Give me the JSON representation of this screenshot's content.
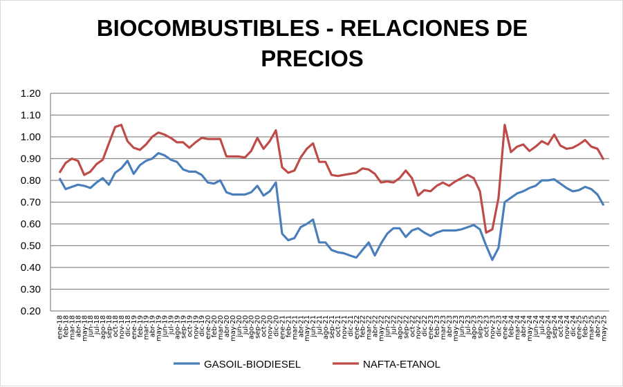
{
  "chart_data": {
    "type": "line",
    "title": "BIOCOMBUSTIBLES - RELACIONES DE PRECIOS",
    "title_lines": [
      "BIOCOMBUSTIBLES - RELACIONES DE",
      "PRECIOS"
    ],
    "xlabel": "",
    "ylabel": "",
    "ylim": [
      0.2,
      1.2
    ],
    "yticks": [
      "0.20",
      "0.30",
      "0.40",
      "0.50",
      "0.60",
      "0.70",
      "0.80",
      "0.90",
      "1.00",
      "1.10",
      "1.20"
    ],
    "grid": true,
    "legend_position": "bottom",
    "x": [
      "ene-18",
      "feb-18",
      "mar-18",
      "abr-18",
      "may-18",
      "jun-18",
      "jul-18",
      "ago-18",
      "sep-18",
      "oct-18",
      "nov-18",
      "dic-18",
      "ene-19",
      "feb-19",
      "mar-19",
      "abr-19",
      "may-19",
      "jun-19",
      "jul-19",
      "ago-19",
      "sep-19",
      "oct-19",
      "nov-19",
      "dic-19",
      "ene-20",
      "feb-20",
      "mar-20",
      "abr-20",
      "may-20",
      "jun-20",
      "jul-20",
      "ago-20",
      "sep-20",
      "oct-20",
      "nov-20",
      "dic-20",
      "ene-21",
      "feb-21",
      "mar-21",
      "abr-21",
      "may-21",
      "jun-21",
      "jul-21",
      "ago-21",
      "sep-21",
      "oct-21",
      "nov-21",
      "dic-21",
      "ene-22",
      "feb-22",
      "mar-22",
      "abr-22",
      "may-22",
      "jun-22",
      "jul-22",
      "ago-22",
      "sep-22",
      "oct-22",
      "nov-22",
      "dic-22",
      "ene-23",
      "feb-23",
      "mar-23",
      "abr-23",
      "may-23",
      "jun-23",
      "jul-23",
      "ago-23",
      "sep-23",
      "oct-23",
      "nov-23",
      "dic-23",
      "ene-24",
      "feb-24",
      "mar-24",
      "abr-24",
      "may-24",
      "jun-24",
      "jul-24",
      "ago-24",
      "sep-24",
      "oct-24",
      "nov-24",
      "dic-24",
      "ene-25",
      "feb-25",
      "mar-25",
      "abr-25",
      "may-25"
    ],
    "series": [
      {
        "name": "GASOIL-BIODIESEL",
        "color": "#4a7ebb",
        "values": [
          0.81,
          0.76,
          0.77,
          0.78,
          0.775,
          0.765,
          0.79,
          0.81,
          0.78,
          0.835,
          0.855,
          0.89,
          0.83,
          0.87,
          0.89,
          0.9,
          0.925,
          0.915,
          0.895,
          0.885,
          0.85,
          0.84,
          0.84,
          0.825,
          0.79,
          0.785,
          0.8,
          0.745,
          0.735,
          0.735,
          0.735,
          0.745,
          0.775,
          0.73,
          0.75,
          0.79,
          0.555,
          0.525,
          0.535,
          0.585,
          0.6,
          0.62,
          0.515,
          0.515,
          0.48,
          0.47,
          0.465,
          0.455,
          0.445,
          0.48,
          0.515,
          0.455,
          0.51,
          0.555,
          0.58,
          0.58,
          0.54,
          0.57,
          0.58,
          0.56,
          0.545,
          0.56,
          0.57,
          0.57,
          0.57,
          0.575,
          0.585,
          0.595,
          0.575,
          0.5,
          0.435,
          0.49,
          0.7,
          0.72,
          0.74,
          0.75,
          0.765,
          0.775,
          0.8,
          0.8,
          0.805,
          0.785,
          0.765,
          0.75,
          0.755,
          0.77,
          0.76,
          0.735,
          0.685
        ]
      },
      {
        "name": "NAFTA-ETANOL",
        "color": "#be4b48",
        "values": [
          0.835,
          0.88,
          0.9,
          0.89,
          0.825,
          0.84,
          0.875,
          0.895,
          0.97,
          1.045,
          1.055,
          0.98,
          0.95,
          0.94,
          0.965,
          1.0,
          1.02,
          1.01,
          0.995,
          0.975,
          0.975,
          0.95,
          0.975,
          0.995,
          0.99,
          0.99,
          0.99,
          0.91,
          0.91,
          0.91,
          0.905,
          0.935,
          0.995,
          0.945,
          0.98,
          1.03,
          0.86,
          0.835,
          0.845,
          0.905,
          0.945,
          0.97,
          0.885,
          0.885,
          0.825,
          0.82,
          0.825,
          0.83,
          0.835,
          0.855,
          0.85,
          0.83,
          0.79,
          0.795,
          0.79,
          0.81,
          0.845,
          0.81,
          0.73,
          0.755,
          0.75,
          0.775,
          0.79,
          0.775,
          0.795,
          0.81,
          0.825,
          0.81,
          0.75,
          0.56,
          0.575,
          0.72,
          1.055,
          0.93,
          0.955,
          0.965,
          0.935,
          0.955,
          0.98,
          0.965,
          1.01,
          0.96,
          0.945,
          0.95,
          0.965,
          0.985,
          0.955,
          0.945,
          0.895
        ]
      }
    ]
  }
}
